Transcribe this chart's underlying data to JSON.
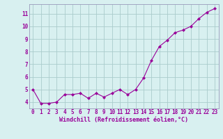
{
  "x": [
    0,
    1,
    2,
    3,
    4,
    5,
    6,
    7,
    8,
    9,
    10,
    11,
    12,
    13,
    14,
    15,
    16,
    17,
    18,
    19,
    20,
    21,
    22,
    23
  ],
  "y": [
    5.0,
    3.9,
    3.9,
    4.0,
    4.6,
    4.6,
    4.7,
    4.3,
    4.7,
    4.4,
    4.7,
    5.0,
    4.6,
    5.0,
    5.9,
    7.3,
    8.4,
    8.9,
    9.5,
    9.7,
    10.0,
    10.6,
    11.1,
    11.4
  ],
  "line_color": "#990099",
  "marker": "D",
  "marker_size": 2.0,
  "bg_color": "#d8f0f0",
  "grid_color": "#aacccc",
  "xlabel": "Windchill (Refroidissement éolien,°C)",
  "xlim": [
    -0.5,
    23.5
  ],
  "ylim": [
    3.5,
    11.75
  ],
  "yticks": [
    4,
    5,
    6,
    7,
    8,
    9,
    10,
    11
  ],
  "xtick_labels": [
    "0",
    "1",
    "2",
    "3",
    "4",
    "5",
    "6",
    "7",
    "8",
    "9",
    "10",
    "11",
    "12",
    "13",
    "14",
    "15",
    "16",
    "17",
    "18",
    "19",
    "20",
    "21",
    "22",
    "23"
  ],
  "label_color": "#990099",
  "spine_color": "#9999bb",
  "font_size": 5.5,
  "xlabel_fontsize": 6.0,
  "lw": 0.8
}
